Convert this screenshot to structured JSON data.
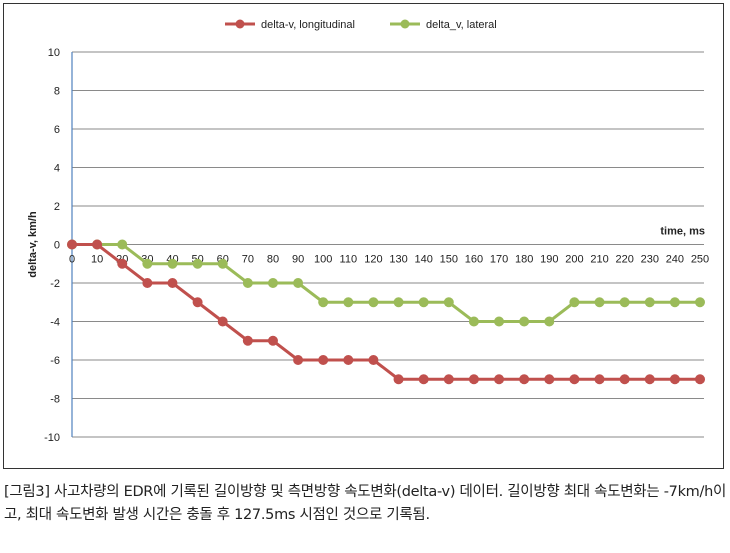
{
  "chart_data": {
    "type": "line",
    "x": [
      0,
      10,
      20,
      30,
      40,
      50,
      60,
      70,
      80,
      90,
      100,
      110,
      120,
      130,
      140,
      150,
      160,
      170,
      180,
      190,
      200,
      210,
      220,
      230,
      240,
      250
    ],
    "series": [
      {
        "name": "delta-v, longitudinal",
        "color": "#c0504d",
        "values": [
          0,
          0,
          -1,
          -2,
          -2,
          -3,
          -4,
          -5,
          -5,
          -6,
          -6,
          -6,
          -6,
          -7,
          -7,
          -7,
          -7,
          -7,
          -7,
          -7,
          -7,
          -7,
          -7,
          -7,
          -7,
          -7
        ]
      },
      {
        "name": "delta_v, lateral",
        "color": "#9bbb59",
        "values": [
          0,
          0,
          0,
          -1,
          -1,
          -1,
          -1,
          -2,
          -2,
          -2,
          -3,
          -3,
          -3,
          -3,
          -3,
          -3,
          -4,
          -4,
          -4,
          -4,
          -3,
          -3,
          -3,
          -3,
          -3,
          -3
        ]
      }
    ],
    "xlabel": "time, ms",
    "ylabel": "delta-v,  km/h",
    "ylim": [
      -10,
      10
    ],
    "yticks": [
      10,
      8,
      6,
      4,
      2,
      0,
      -2,
      -4,
      -6,
      -8,
      -10
    ],
    "xlim": [
      0,
      250
    ],
    "grid": true,
    "legend": "top"
  },
  "caption": "[그림3] 사고차량의 EDR에 기록된 길이방향 및 측면방향 속도변화(delta-v) 데이터. 길이방향 최대 속도변화는 -7km/h이고, 최대 속도변화 발생 시간은 충돌 후 127.5ms 시점인 것으로 기록됨."
}
